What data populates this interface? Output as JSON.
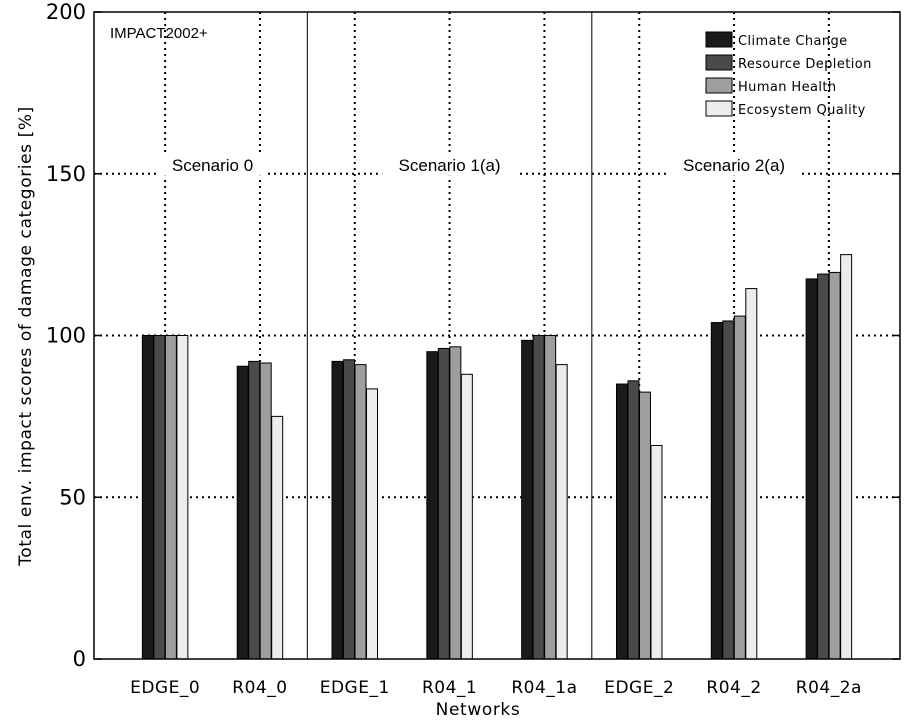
{
  "chart_data": {
    "type": "bar",
    "title": "",
    "annotation": "IMPACT2002+",
    "xlabel": "Networks",
    "ylabel": "Total env. impact scores of damage categories [%]",
    "ylim": [
      0,
      200
    ],
    "yticks": [
      "0",
      "50",
      "100",
      "150",
      "200"
    ],
    "grid": true,
    "legend_position": "top-right",
    "categories": [
      "EDGE_0",
      "R04_0",
      "EDGE_1",
      "R04_1",
      "R04_1a",
      "EDGE_2",
      "R04_2",
      "R04_2a"
    ],
    "scenarios": [
      {
        "label": "Scenario 0",
        "categories": [
          "EDGE_0",
          "R04_0"
        ]
      },
      {
        "label": "Scenario 1(a)",
        "categories": [
          "EDGE_1",
          "R04_1",
          "R04_1a"
        ]
      },
      {
        "label": "Scenario 2(a)",
        "categories": [
          "EDGE_2",
          "R04_2",
          "R04_2a"
        ]
      }
    ],
    "series": [
      {
        "name": "Climate Change",
        "color": "#1a1a1a",
        "values": [
          100,
          90.5,
          92,
          95,
          98.5,
          85,
          104,
          117.5
        ]
      },
      {
        "name": "Resource Depletion",
        "color": "#4a4a4a",
        "values": [
          100,
          92,
          92.5,
          96,
          100,
          86,
          104.5,
          119
        ]
      },
      {
        "name": "Human Health",
        "color": "#9e9e9e",
        "values": [
          100,
          91.5,
          91,
          96.5,
          100,
          82.5,
          106,
          119.5
        ]
      },
      {
        "name": "Ecosystem Quality",
        "color": "#ececec",
        "values": [
          100,
          75,
          83.5,
          88,
          91,
          66,
          114.5,
          125
        ]
      }
    ]
  }
}
